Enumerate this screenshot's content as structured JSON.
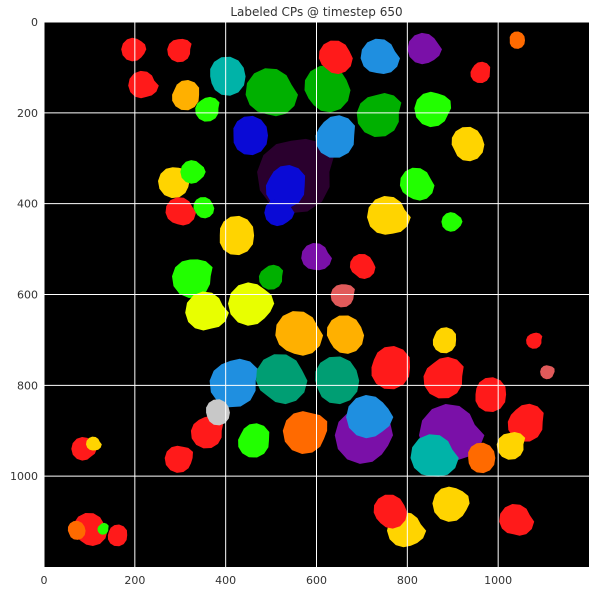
{
  "chart_data": {
    "type": "heatmap",
    "title": "Labeled CPs @ timestep 650",
    "xlabel": "",
    "ylabel": "",
    "xlim": [
      0,
      1200
    ],
    "ylim": [
      1200,
      0
    ],
    "x_ticks": [
      0,
      200,
      400,
      600,
      800,
      1000
    ],
    "y_ticks": [
      0,
      200,
      400,
      600,
      800,
      1000
    ],
    "x_tick_labels": [
      "0",
      "200",
      "400",
      "600",
      "800",
      "1000"
    ],
    "y_tick_labels": [
      "0",
      "200",
      "400",
      "600",
      "800",
      "1000"
    ],
    "grid": true,
    "background_color": "#000000",
    "grid_color": "#ffffff",
    "palette": [
      "#ff1a1a",
      "#ffd400",
      "#22ff00",
      "#009e73",
      "#1f8fe0",
      "#0a0ad6",
      "#7a10a8",
      "#2a002e",
      "#00b3a8",
      "#ff6a00",
      "#ffb000",
      "#e8ff00",
      "#00b000",
      "#c8c8c8",
      "#e05a5a"
    ],
    "regions": [
      {
        "x": 560,
        "y": 330,
        "r": 95,
        "color": "#2a002e"
      },
      {
        "x": 710,
        "y": 910,
        "r": 70,
        "color": "#7a10a8"
      },
      {
        "x": 900,
        "y": 910,
        "r": 75,
        "color": "#7a10a8"
      },
      {
        "x": 500,
        "y": 160,
        "r": 60,
        "color": "#00b000"
      },
      {
        "x": 620,
        "y": 150,
        "r": 55,
        "color": "#00b000"
      },
      {
        "x": 450,
        "y": 250,
        "r": 45,
        "color": "#0a0ad6"
      },
      {
        "x": 530,
        "y": 360,
        "r": 50,
        "color": "#0a0ad6"
      },
      {
        "x": 420,
        "y": 790,
        "r": 60,
        "color": "#1f8fe0"
      },
      {
        "x": 580,
        "y": 900,
        "r": 55,
        "color": "#ff6a00"
      },
      {
        "x": 720,
        "y": 870,
        "r": 55,
        "color": "#1f8fe0"
      },
      {
        "x": 860,
        "y": 960,
        "r": 55,
        "color": "#00b3a8"
      },
      {
        "x": 520,
        "y": 790,
        "r": 60,
        "color": "#009e73"
      },
      {
        "x": 640,
        "y": 790,
        "r": 55,
        "color": "#009e73"
      },
      {
        "x": 760,
        "y": 760,
        "r": 50,
        "color": "#ff1a1a"
      },
      {
        "x": 880,
        "y": 780,
        "r": 50,
        "color": "#ff1a1a"
      },
      {
        "x": 330,
        "y": 560,
        "r": 50,
        "color": "#22ff00"
      },
      {
        "x": 460,
        "y": 620,
        "r": 55,
        "color": "#e8ff00"
      },
      {
        "x": 360,
        "y": 640,
        "r": 50,
        "color": "#e8ff00"
      },
      {
        "x": 560,
        "y": 690,
        "r": 55,
        "color": "#ffb000"
      },
      {
        "x": 660,
        "y": 690,
        "r": 45,
        "color": "#ffb000"
      },
      {
        "x": 420,
        "y": 470,
        "r": 45,
        "color": "#ffd400"
      },
      {
        "x": 640,
        "y": 250,
        "r": 50,
        "color": "#1f8fe0"
      },
      {
        "x": 740,
        "y": 200,
        "r": 55,
        "color": "#00b000"
      },
      {
        "x": 860,
        "y": 190,
        "r": 45,
        "color": "#22ff00"
      },
      {
        "x": 840,
        "y": 60,
        "r": 40,
        "color": "#7a10a8"
      },
      {
        "x": 740,
        "y": 80,
        "r": 45,
        "color": "#1f8fe0"
      },
      {
        "x": 640,
        "y": 80,
        "r": 40,
        "color": "#ff1a1a"
      },
      {
        "x": 400,
        "y": 120,
        "r": 45,
        "color": "#00b3a8"
      },
      {
        "x": 310,
        "y": 160,
        "r": 35,
        "color": "#ffb000"
      },
      {
        "x": 360,
        "y": 190,
        "r": 30,
        "color": "#22ff00"
      },
      {
        "x": 290,
        "y": 350,
        "r": 40,
        "color": "#ffd400"
      },
      {
        "x": 330,
        "y": 330,
        "r": 30,
        "color": "#22ff00"
      },
      {
        "x": 760,
        "y": 430,
        "r": 50,
        "color": "#ffd400"
      },
      {
        "x": 820,
        "y": 360,
        "r": 40,
        "color": "#22ff00"
      },
      {
        "x": 930,
        "y": 270,
        "r": 40,
        "color": "#ffd400"
      },
      {
        "x": 980,
        "y": 820,
        "r": 40,
        "color": "#ff1a1a"
      },
      {
        "x": 1060,
        "y": 880,
        "r": 45,
        "color": "#ff1a1a"
      },
      {
        "x": 1030,
        "y": 930,
        "r": 35,
        "color": "#ffd400"
      },
      {
        "x": 900,
        "y": 1060,
        "r": 45,
        "color": "#ffd400"
      },
      {
        "x": 800,
        "y": 1120,
        "r": 45,
        "color": "#ffd400"
      },
      {
        "x": 1040,
        "y": 1100,
        "r": 40,
        "color": "#ff1a1a"
      },
      {
        "x": 760,
        "y": 1080,
        "r": 40,
        "color": "#ff1a1a"
      },
      {
        "x": 960,
        "y": 960,
        "r": 35,
        "color": "#ff6a00"
      },
      {
        "x": 460,
        "y": 920,
        "r": 40,
        "color": "#22ff00"
      },
      {
        "x": 360,
        "y": 900,
        "r": 40,
        "color": "#ff1a1a"
      },
      {
        "x": 300,
        "y": 960,
        "r": 35,
        "color": "#ff1a1a"
      },
      {
        "x": 90,
        "y": 940,
        "r": 30,
        "color": "#ff1a1a"
      },
      {
        "x": 110,
        "y": 930,
        "r": 18,
        "color": "#ffd400"
      },
      {
        "x": 100,
        "y": 1120,
        "r": 40,
        "color": "#ff1a1a"
      },
      {
        "x": 70,
        "y": 1120,
        "r": 22,
        "color": "#ff6a00"
      },
      {
        "x": 160,
        "y": 1130,
        "r": 25,
        "color": "#ff1a1a"
      },
      {
        "x": 130,
        "y": 1115,
        "r": 14,
        "color": "#22ff00"
      },
      {
        "x": 300,
        "y": 60,
        "r": 30,
        "color": "#ff1a1a"
      },
      {
        "x": 200,
        "y": 60,
        "r": 30,
        "color": "#ff1a1a"
      },
      {
        "x": 220,
        "y": 140,
        "r": 35,
        "color": "#ff1a1a"
      },
      {
        "x": 300,
        "y": 420,
        "r": 35,
        "color": "#ff1a1a"
      },
      {
        "x": 350,
        "y": 410,
        "r": 25,
        "color": "#22ff00"
      },
      {
        "x": 1040,
        "y": 40,
        "r": 20,
        "color": "#ff6a00"
      },
      {
        "x": 960,
        "y": 110,
        "r": 25,
        "color": "#ff1a1a"
      },
      {
        "x": 1080,
        "y": 700,
        "r": 20,
        "color": "#ff1a1a"
      },
      {
        "x": 1110,
        "y": 770,
        "r": 18,
        "color": "#e05a5a"
      },
      {
        "x": 520,
        "y": 420,
        "r": 35,
        "color": "#0a0ad6"
      },
      {
        "x": 600,
        "y": 520,
        "r": 35,
        "color": "#7a10a8"
      },
      {
        "x": 700,
        "y": 540,
        "r": 30,
        "color": "#ff1a1a"
      },
      {
        "x": 380,
        "y": 860,
        "r": 30,
        "color": "#c8c8c8"
      },
      {
        "x": 880,
        "y": 700,
        "r": 30,
        "color": "#ffd400"
      },
      {
        "x": 500,
        "y": 560,
        "r": 30,
        "color": "#00b000"
      },
      {
        "x": 660,
        "y": 600,
        "r": 30,
        "color": "#e05a5a"
      },
      {
        "x": 900,
        "y": 440,
        "r": 25,
        "color": "#22ff00"
      }
    ]
  }
}
